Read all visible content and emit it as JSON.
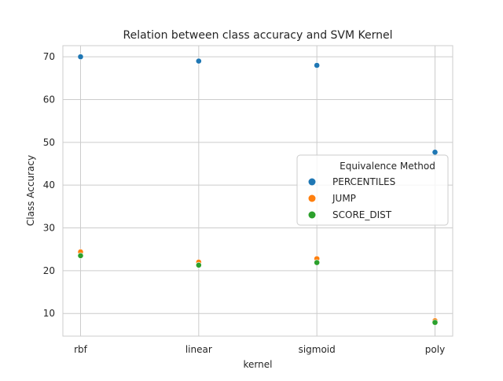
{
  "chart_data": {
    "type": "scatter",
    "title": "Relation between class accuracy and SVM Kernel",
    "xlabel": "kernel",
    "ylabel": "Class Accuracy",
    "categories": [
      "rbf",
      "linear",
      "sigmoid",
      "poly"
    ],
    "yticks": [
      10,
      20,
      30,
      40,
      50,
      60,
      70
    ],
    "ylim": [
      4.7,
      72.6
    ],
    "grid": true,
    "legend": {
      "title": "Equivalence Method",
      "placement": "center-right"
    },
    "series": [
      {
        "name": "PERCENTILES",
        "color": "#1f77b4",
        "values": [
          70.0,
          69.0,
          68.0,
          47.7
        ]
      },
      {
        "name": "JUMP",
        "color": "#ff7f0e",
        "values": [
          24.4,
          22.0,
          22.8,
          8.3
        ]
      },
      {
        "name": "SCORE_DIST",
        "color": "#2ca02c",
        "values": [
          23.5,
          21.3,
          21.9,
          7.9
        ]
      }
    ]
  }
}
